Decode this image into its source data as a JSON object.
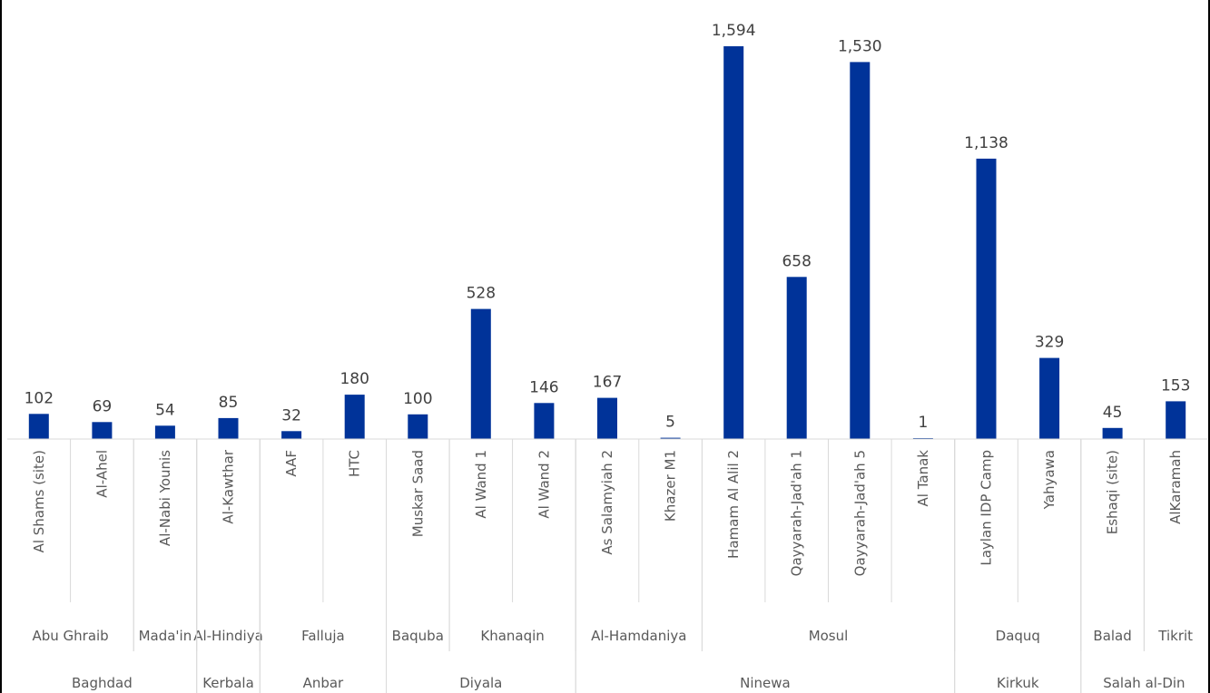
{
  "chart_data": {
    "type": "bar",
    "title": "",
    "xlabel": "",
    "ylabel": "",
    "bar_color": "#003399",
    "ylim": [
      0,
      1594
    ],
    "categories": [
      "Al Shams (site)",
      "Al-Ahel",
      "Al-Nabi Younis",
      "Al-Kawthar",
      "AAF",
      "HTC",
      "Muskar Saad",
      "Al Wand 1",
      "Al Wand 2",
      "As Salamyiah 2",
      "Khazer M1",
      "Hamam Al Alil 2",
      "Qayyarah-Jad'ah 1",
      "Qayyarah-Jad'ah 5",
      "Al Tanak",
      "Laylan IDP Camp",
      "Yahyawa",
      "Eshaqi (site)",
      "AlKaramah"
    ],
    "values": [
      102,
      69,
      54,
      85,
      32,
      180,
      100,
      528,
      146,
      167,
      5,
      1594,
      658,
      1530,
      1,
      1138,
      329,
      45,
      153
    ],
    "value_labels": [
      "102",
      "69",
      "54",
      "85",
      "32",
      "180",
      "100",
      "528",
      "146",
      "167",
      "5",
      "1,594",
      "658",
      "1,530",
      "1",
      "1,138",
      "329",
      "45",
      "153"
    ],
    "districts": [
      {
        "name": "Abu Ghraib",
        "span": 2
      },
      {
        "name": "Mada'in",
        "span": 1
      },
      {
        "name": "Al-Hindiya",
        "span": 1
      },
      {
        "name": "Falluja",
        "span": 2
      },
      {
        "name": "Baquba",
        "span": 1
      },
      {
        "name": "Khanaqin",
        "span": 2
      },
      {
        "name": "Al-Hamdaniya",
        "span": 2
      },
      {
        "name": "Mosul",
        "span": 4
      },
      {
        "name": "Daquq",
        "span": 2
      },
      {
        "name": "Balad",
        "span": 1
      },
      {
        "name": "Tikrit",
        "span": 1
      }
    ],
    "governorates": [
      {
        "name": "Baghdad",
        "span": 3
      },
      {
        "name": "Kerbala",
        "span": 1
      },
      {
        "name": "Anbar",
        "span": 2
      },
      {
        "name": "Diyala",
        "span": 3
      },
      {
        "name": "Ninewa",
        "span": 6
      },
      {
        "name": "Kirkuk",
        "span": 2
      },
      {
        "name": "Salah al-Din",
        "span": 2
      }
    ]
  }
}
